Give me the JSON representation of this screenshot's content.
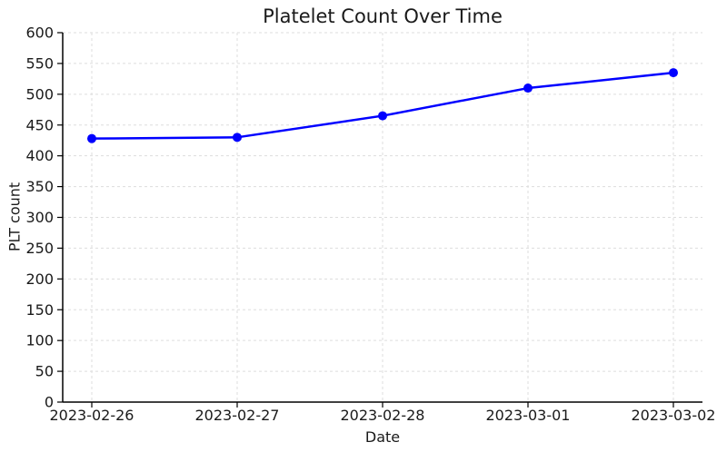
{
  "chart_data": {
    "type": "line",
    "title": "Platelet Count Over Time",
    "xlabel": "Date",
    "ylabel": "PLT count",
    "x": [
      "2023-02-26",
      "2023-02-27",
      "2023-02-28",
      "2023-03-01",
      "2023-03-02"
    ],
    "series": [
      {
        "name": "PLT count",
        "values": [
          428,
          430,
          465,
          510,
          535
        ]
      }
    ],
    "ylim": [
      0,
      600
    ],
    "ytick_step": 50,
    "grid": true,
    "grid_style": "dashed",
    "legend": false,
    "marker": "circle",
    "line_color": "#0000ff",
    "grid_color": "#dddddd",
    "axis_color": "#000000",
    "text_color": "#1a1a1a"
  }
}
